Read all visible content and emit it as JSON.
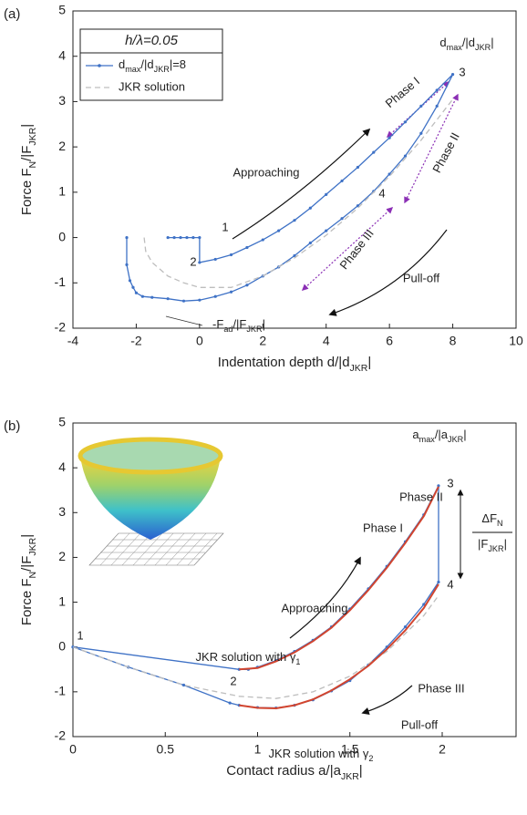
{
  "chart_data": [
    {
      "type": "line",
      "panel_label": "(a)",
      "xlabel": [
        "Indentation depth d/|d",
        "JKR",
        "|"
      ],
      "ylabel": [
        "Force  F",
        "N",
        "/|F",
        "JKR",
        "|"
      ],
      "xlim": [
        -4,
        10
      ],
      "ylim": [
        -2,
        5
      ],
      "xticks": [
        -4,
        -2,
        0,
        2,
        4,
        6,
        8,
        10
      ],
      "yticks": [
        -2,
        -1,
        0,
        1,
        2,
        3,
        4,
        5
      ],
      "legend": {
        "title": "h/λ=0.05",
        "loc": "upper left"
      },
      "series": [
        {
          "name": [
            "d",
            "max",
            "/|d",
            "JKR",
            "|=8"
          ],
          "color": "#3f72c6",
          "style": "solid",
          "markers": true,
          "x": [
            -1,
            -0.8,
            -0.6,
            -0.4,
            -0.2,
            0,
            0,
            0.5,
            1,
            1.5,
            2,
            2.5,
            3,
            3.5,
            4,
            4.5,
            5,
            5.5,
            6,
            6.5,
            7,
            7.5,
            8,
            7.5,
            7,
            6.5,
            6,
            5.5,
            5,
            4.5,
            4,
            3.5,
            3,
            2.5,
            2,
            1.5,
            1,
            0.5,
            0,
            -0.5,
            -1,
            -1.5,
            -1.8,
            -2,
            -2.1,
            -2.2,
            -2.3,
            -2.3
          ],
          "values": [
            0,
            0,
            0,
            0,
            0,
            0,
            -0.55,
            -0.48,
            -0.38,
            -0.22,
            -0.05,
            0.15,
            0.38,
            0.65,
            0.95,
            1.25,
            1.55,
            1.88,
            2.2,
            2.55,
            2.9,
            3.25,
            3.6,
            2.9,
            2.3,
            1.8,
            1.4,
            1.02,
            0.7,
            0.42,
            0.15,
            -0.12,
            -0.4,
            -0.65,
            -0.85,
            -1.05,
            -1.2,
            -1.3,
            -1.38,
            -1.4,
            -1.35,
            -1.32,
            -1.3,
            -1.22,
            -1.1,
            -0.95,
            -0.6,
            0
          ]
        },
        {
          "name": "JKR solution",
          "color": "#bdbdbd",
          "style": "dashed",
          "markers": false,
          "x": [
            -1.75,
            -1.7,
            -1.5,
            -1,
            -0.5,
            0,
            1,
            2,
            3,
            4,
            5,
            6,
            7,
            8
          ],
          "values": [
            0,
            -0.3,
            -0.55,
            -0.85,
            -1.0,
            -1.1,
            -1.1,
            -0.85,
            -0.45,
            0.05,
            0.65,
            1.35,
            2.15,
            3.05
          ]
        }
      ],
      "annotations": [
        "Approaching",
        "Pull-off",
        "Phase I",
        "Phase II",
        "Phase III",
        [
          "d",
          "max",
          "/|d",
          "JKR",
          "|"
        ],
        [
          "-F",
          "ad",
          "/|F",
          "JKR",
          "|"
        ]
      ],
      "point_labels": [
        "1",
        "2",
        "3",
        "4"
      ]
    },
    {
      "type": "line",
      "panel_label": "(b)",
      "xlabel": [
        "Contact radius a/|a",
        "JKR",
        "|"
      ],
      "ylabel": [
        "Force  F",
        "N",
        "/|F",
        "JKR",
        "|"
      ],
      "xlim": [
        0,
        2.4
      ],
      "ylim": [
        -2,
        5
      ],
      "xticks": [
        0,
        0.5,
        1,
        1.5,
        2
      ],
      "yticks": [
        -2,
        -1,
        0,
        1,
        2,
        3,
        4,
        5
      ],
      "series": [
        {
          "color": "#3f72c6",
          "style": "solid",
          "markers": true,
          "x": [
            0,
            0.9,
            0.95,
            1.0,
            1.1,
            1.2,
            1.3,
            1.4,
            1.5,
            1.6,
            1.7,
            1.8,
            1.9,
            1.98,
            1.98,
            1.9,
            1.8,
            1.7,
            1.6,
            1.5,
            1.4,
            1.3,
            1.2,
            1.1,
            1.0,
            0.9,
            0.85,
            0.6,
            0.3,
            0
          ],
          "values": [
            0,
            -0.5,
            -0.5,
            -0.45,
            -0.3,
            -0.1,
            0.15,
            0.45,
            0.85,
            1.3,
            1.8,
            2.35,
            2.95,
            3.6,
            1.45,
            0.95,
            0.45,
            0.0,
            -0.4,
            -0.75,
            -0.98,
            -1.18,
            -1.3,
            -1.36,
            -1.35,
            -1.3,
            -1.25,
            -0.85,
            -0.45,
            0
          ]
        },
        {
          "color": "#bdbdbd",
          "style": "dashed",
          "markers": false,
          "x": [
            0,
            0.3,
            0.6,
            0.9,
            1.1,
            1.3,
            1.5,
            1.7,
            1.9,
            1.98
          ],
          "values": [
            0,
            -0.45,
            -0.85,
            -1.1,
            -1.15,
            -1.0,
            -0.65,
            -0.1,
            0.7,
            1.15
          ]
        },
        {
          "color": "#d2452f",
          "style": "solid",
          "markers": false,
          "x": [
            0.9,
            1.0,
            1.1,
            1.2,
            1.3,
            1.4,
            1.5,
            1.6,
            1.7,
            1.8,
            1.9,
            1.98
          ],
          "values": [
            -0.5,
            -0.47,
            -0.32,
            -0.12,
            0.13,
            0.43,
            0.82,
            1.27,
            1.77,
            2.32,
            2.92,
            3.58
          ]
        },
        {
          "color": "#d2452f",
          "style": "solid",
          "markers": false,
          "x": [
            0.9,
            1.0,
            1.1,
            1.2,
            1.3,
            1.4,
            1.5,
            1.6,
            1.7,
            1.8,
            1.9,
            1.98
          ],
          "values": [
            -1.3,
            -1.36,
            -1.37,
            -1.3,
            -1.17,
            -0.97,
            -0.72,
            -0.42,
            -0.05,
            0.37,
            0.87,
            1.4
          ]
        }
      ],
      "annotations": [
        "Approaching",
        "Pull-off",
        "Phase I",
        "Phase II",
        "Phase III",
        [
          "a",
          "max",
          "/|a",
          "JKR",
          "|"
        ],
        [
          "ΔF",
          "N"
        ],
        [
          "|F",
          "JKR",
          "|"
        ],
        [
          "JKR solution with γ",
          "1"
        ],
        [
          "JKR solution with γ",
          "2"
        ]
      ],
      "point_labels": [
        "1",
        "2",
        "3",
        "4"
      ]
    }
  ]
}
